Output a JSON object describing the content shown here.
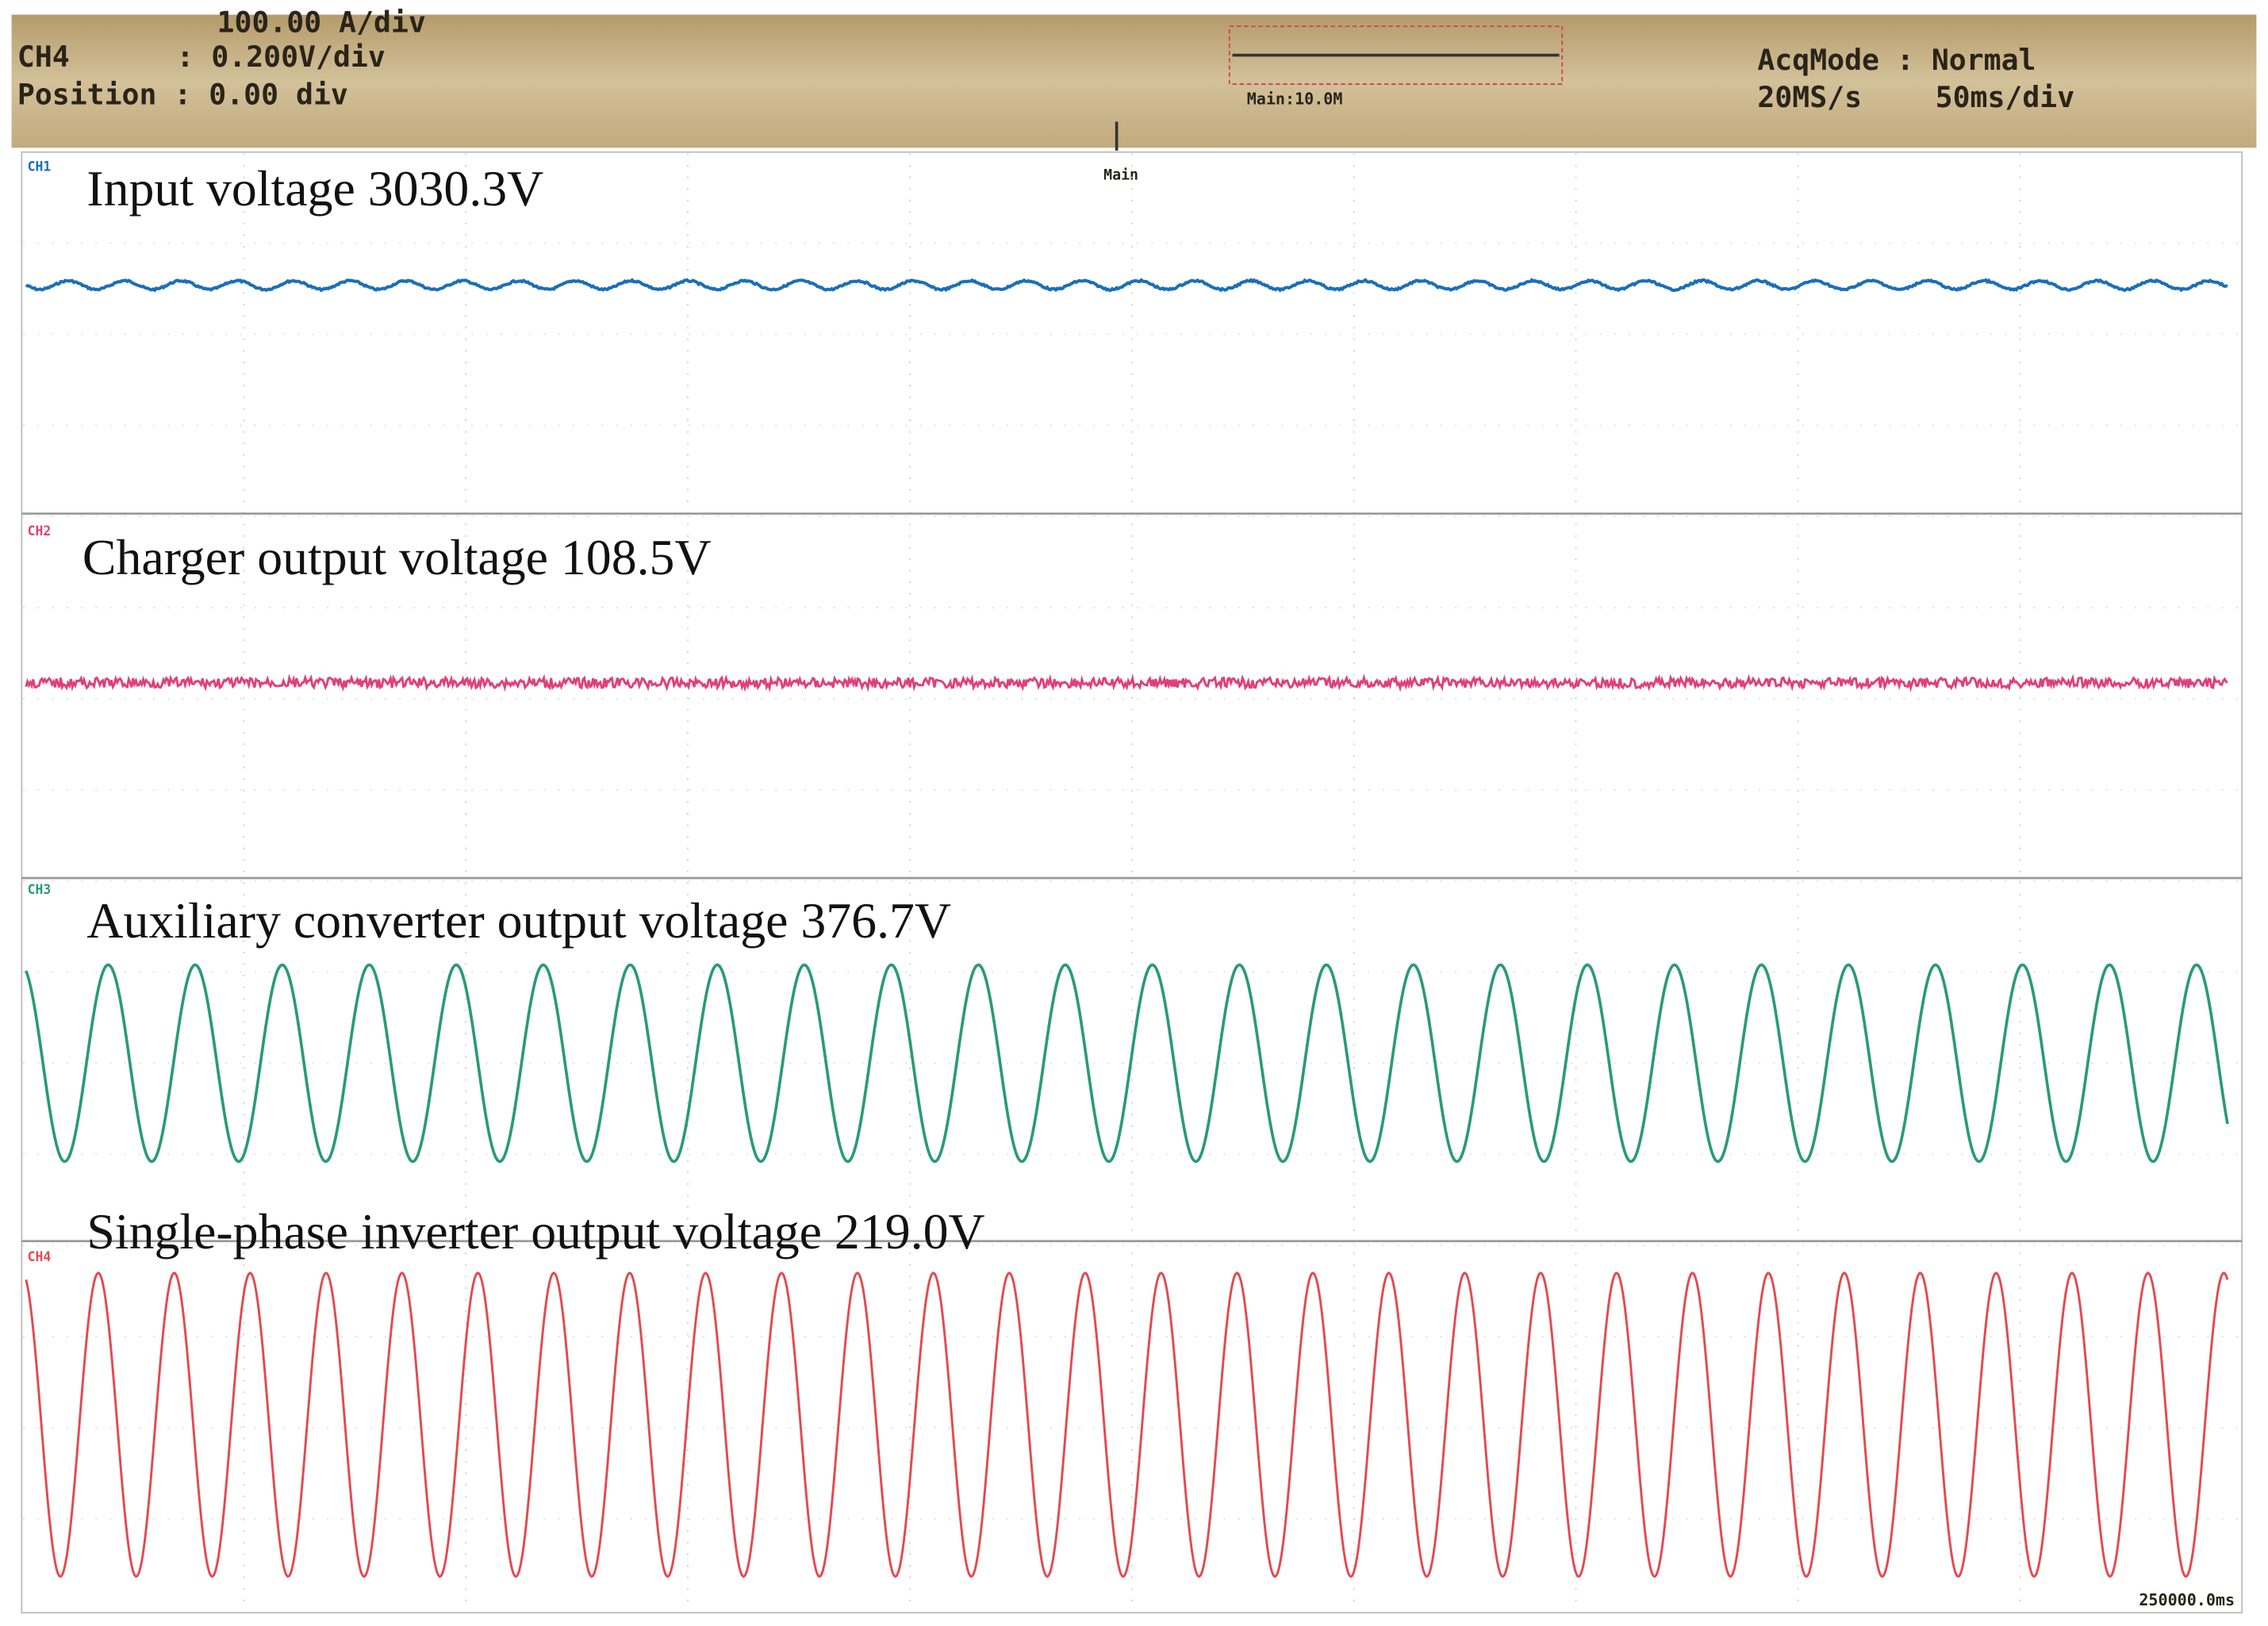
{
  "header": {
    "scale_top": "100.00 A/div",
    "channel": "CH4",
    "volts_div": ": 0.200V/div",
    "position": "Position : 0.00 div",
    "timebase_main": "Main:10.0M",
    "acq_mode": "AcqMode : Normal",
    "sample_rate": "20MS/s",
    "time_div": "50ms/div"
  },
  "trigger_marker": "Main",
  "channels": [
    {
      "tag": "CH1",
      "label": "Input voltage 3030.3V"
    },
    {
      "tag": "CH2",
      "label": "Charger output voltage 108.5V"
    },
    {
      "tag": "CH3",
      "label": "Auxiliary converter output voltage 376.7V"
    },
    {
      "tag": "CH4",
      "label": "Single-phase inverter output voltage 219.0V"
    }
  ],
  "footer": "250000.0ms"
}
